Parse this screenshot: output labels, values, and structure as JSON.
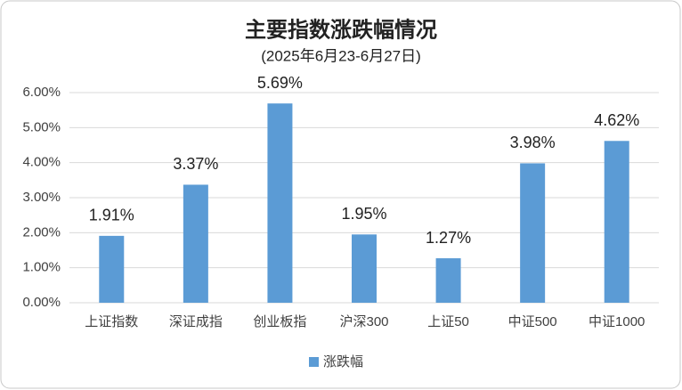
{
  "chart_data": {
    "type": "bar",
    "title": "主要指数涨跌幅情况",
    "subtitle": "(2025年6月23-6月27日)",
    "categories": [
      "上证指数",
      "深证成指",
      "创业板指",
      "沪深300",
      "上证50",
      "中证500",
      "中证1000"
    ],
    "series": [
      {
        "name": "涨跌幅",
        "color": "#5b9bd5",
        "values": [
          1.91,
          3.37,
          5.69,
          1.95,
          1.27,
          3.98,
          4.62
        ],
        "value_labels": [
          "1.91%",
          "3.37%",
          "5.69%",
          "1.95%",
          "1.27%",
          "3.98%",
          "4.62%"
        ]
      }
    ],
    "ylim": [
      0,
      6
    ],
    "yticks": [
      {
        "value": 0,
        "label": "0.00%"
      },
      {
        "value": 1,
        "label": "1.00%"
      },
      {
        "value": 2,
        "label": "2.00%"
      },
      {
        "value": 3,
        "label": "3.00%"
      },
      {
        "value": 4,
        "label": "4.00%"
      },
      {
        "value": 5,
        "label": "5.00%"
      },
      {
        "value": 6,
        "label": "6.00%"
      }
    ],
    "grid": true,
    "legend": "bottom"
  }
}
